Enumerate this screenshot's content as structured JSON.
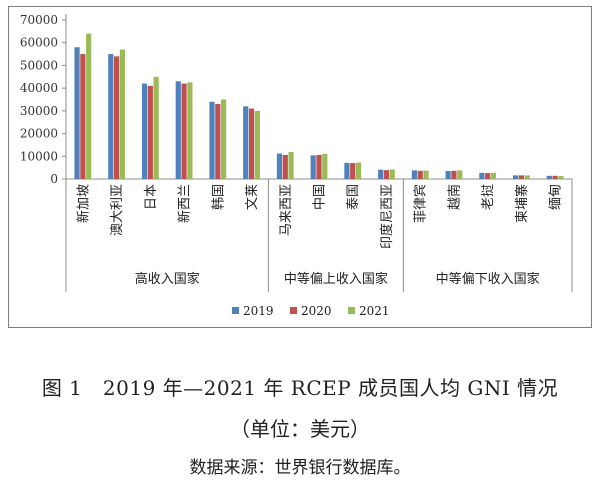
{
  "figure": {
    "title": "图 1　2019 年—2021 年 RCEP 成员国人均 GNI 情况",
    "unit": "（单位：美元）",
    "source": "数据来源：世界银行数据库。"
  },
  "colors": {
    "2019": "#4f81bd",
    "2020": "#c0504d",
    "2021": "#9bbb59"
  },
  "chart_data": {
    "type": "bar",
    "title": "",
    "xlabel": "",
    "ylabel": "",
    "ylim": [
      0,
      70000
    ],
    "yticks": [
      0,
      10000,
      20000,
      30000,
      40000,
      50000,
      60000,
      70000
    ],
    "grid": false,
    "legend_position": "bottom",
    "categories": [
      "新加坡",
      "澳大利亚",
      "日本",
      "新西兰",
      "韩国",
      "文莱",
      "马来西亚",
      "中国",
      "泰国",
      "印度尼西亚",
      "菲律宾",
      "越南",
      "老挝",
      "柬埔寨",
      "缅甸"
    ],
    "groups": [
      {
        "label": "高收入国家",
        "count": 6
      },
      {
        "label": "中等偏上收入国家",
        "count": 4
      },
      {
        "label": "中等偏下收入国家",
        "count": 5
      }
    ],
    "series": [
      {
        "name": "2019",
        "values": [
          58000,
          55000,
          42000,
          43000,
          34000,
          32000,
          11200,
          10400,
          7100,
          4100,
          3800,
          3500,
          2700,
          1600,
          1400
        ]
      },
      {
        "name": "2020",
        "values": [
          55000,
          54000,
          41000,
          42000,
          33000,
          31000,
          10600,
          10600,
          7000,
          3900,
          3600,
          3600,
          2600,
          1600,
          1400
        ]
      },
      {
        "name": "2021",
        "values": [
          64000,
          57000,
          45000,
          42500,
          35000,
          30000,
          11900,
          11000,
          7200,
          4200,
          3700,
          3800,
          2700,
          1600,
          1300
        ]
      }
    ]
  }
}
